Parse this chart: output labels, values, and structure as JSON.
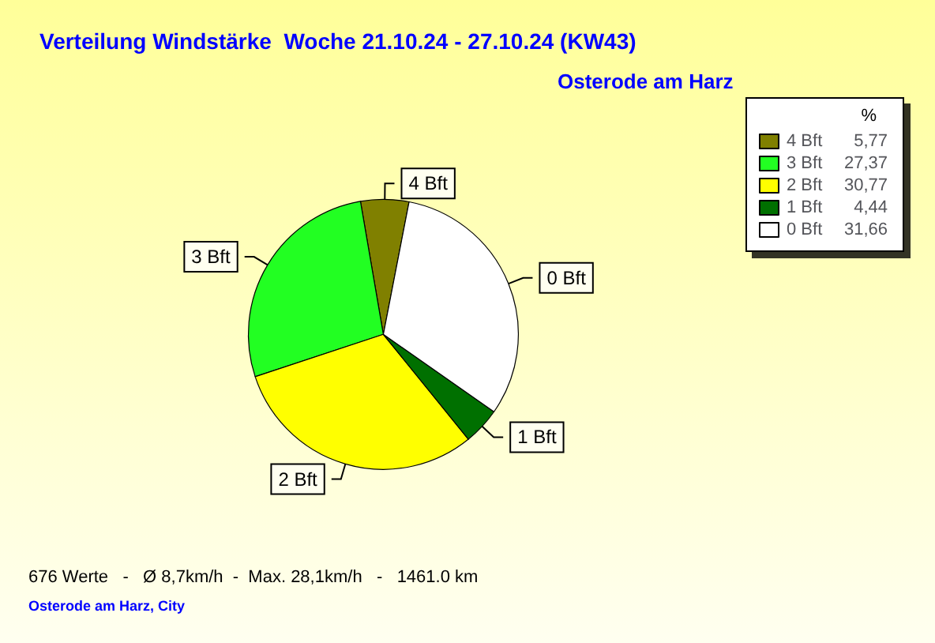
{
  "chart_data": {
    "type": "pie",
    "title": "Verteilung Windstärke  Woche 21.10.24 - 27.10.24 (KW43)",
    "subtitle": "Osterode am Harz",
    "legend_title": "%",
    "categories": [
      "4 Bft",
      "3 Bft",
      "2 Bft",
      "1 Bft",
      "0 Bft"
    ],
    "values": [
      5.77,
      27.37,
      30.77,
      4.44,
      31.66
    ],
    "value_labels": [
      "5,77",
      "27,37",
      "30,77",
      "4,44",
      "31,66"
    ],
    "colors": [
      "#808000",
      "#22ff22",
      "#ffff00",
      "#007000",
      "#ffffff"
    ],
    "legend": "top right",
    "annotations": [
      "676 Werte   -   Ø 8,7km/h  -  Max. 28,1km/h   -   1461.0 km",
      "Osterode am Harz, City"
    ]
  }
}
